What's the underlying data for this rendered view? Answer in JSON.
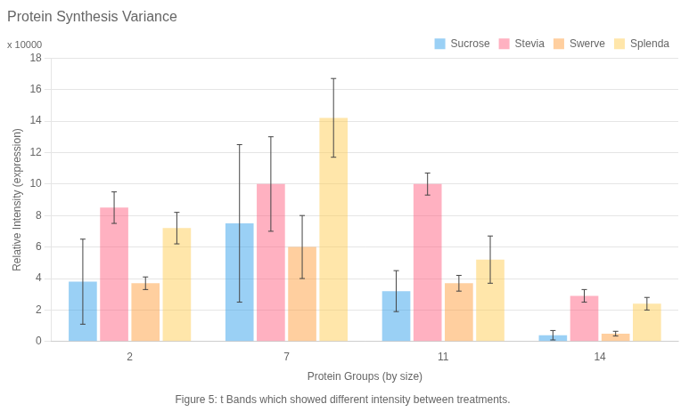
{
  "chart_data": {
    "type": "bar",
    "title": "Protein Synthesis Variance",
    "xlabel": "Protein Groups (by size)",
    "ylabel": "Relative Intensity (expression)",
    "annotation": "x 10000",
    "caption": "Figure 5: t Bands which showed different intensity between treatments.",
    "categories": [
      "2",
      "7",
      "11",
      "14"
    ],
    "series": [
      {
        "name": "Sucrose",
        "values": [
          3.8,
          7.5,
          3.2,
          0.4
        ],
        "errors": [
          2.7,
          5.0,
          1.3,
          0.3
        ]
      },
      {
        "name": "Stevia",
        "values": [
          8.5,
          10.0,
          10.0,
          2.9
        ],
        "errors": [
          1.0,
          3.0,
          0.7,
          0.4
        ]
      },
      {
        "name": "Swerve",
        "values": [
          3.7,
          6.0,
          3.7,
          0.5
        ],
        "errors": [
          0.4,
          2.0,
          0.5,
          0.15
        ]
      },
      {
        "name": "Splenda",
        "values": [
          7.2,
          14.2,
          5.2,
          2.4
        ],
        "errors": [
          1.0,
          2.5,
          1.5,
          0.4
        ]
      }
    ],
    "ylim": [
      0,
      18
    ],
    "yticks": [
      0,
      2,
      4,
      6,
      8,
      10,
      12,
      14,
      16,
      18
    ],
    "grid": true,
    "legend": "upper right"
  }
}
